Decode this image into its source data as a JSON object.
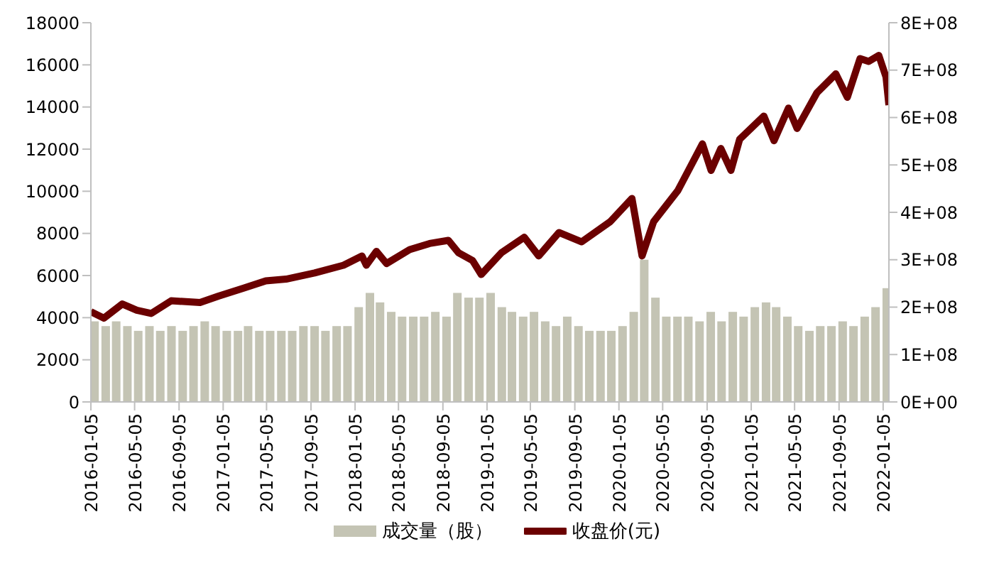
{
  "chart_data": {
    "type": "bar",
    "legend": "bottom",
    "grid": false,
    "marker": "none",
    "xlim": [
      "2016-01-05",
      "2022-01-21"
    ],
    "xticks": [
      "2016-01-05",
      "2016-05-05",
      "2016-09-05",
      "2017-01-05",
      "2017-05-05",
      "2017-09-05",
      "2018-01-05",
      "2018-05-05",
      "2018-09-05",
      "2019-01-05",
      "2019-05-05",
      "2019-09-05",
      "2020-01-05",
      "2020-05-05",
      "2020-09-05",
      "2021-01-05",
      "2021-05-05",
      "2021-09-05",
      "2022-01-05"
    ],
    "ylim": [
      0,
      18000
    ],
    "yticks": [
      0,
      2000,
      4000,
      6000,
      8000,
      10000,
      12000,
      14000,
      16000,
      18000
    ],
    "y2lim": [
      0,
      800000000
    ],
    "y2ticks": [
      {
        "value": 0,
        "label": "0E+00"
      },
      {
        "value": 100000000,
        "label": "1E+08"
      },
      {
        "value": 200000000,
        "label": "2E+08"
      },
      {
        "value": 300000000,
        "label": "3E+08"
      },
      {
        "value": 400000000,
        "label": "4E+08"
      },
      {
        "value": 500000000,
        "label": "5E+08"
      },
      {
        "value": 600000000,
        "label": "6E+08"
      },
      {
        "value": 700000000,
        "label": "7E+08"
      },
      {
        "value": 800000000,
        "label": "8E+08"
      }
    ],
    "series": [
      {
        "name": "成交量（股）",
        "axis": "y2",
        "color": "#c4c4b4",
        "x": [
          "2016-01-15",
          "2016-02-15",
          "2016-03-15",
          "2016-04-15",
          "2016-05-15",
          "2016-06-15",
          "2016-07-15",
          "2016-08-15",
          "2016-09-15",
          "2016-10-15",
          "2016-11-15",
          "2016-12-15",
          "2017-01-15",
          "2017-02-15",
          "2017-03-15",
          "2017-04-15",
          "2017-05-15",
          "2017-06-15",
          "2017-07-15",
          "2017-08-15",
          "2017-09-15",
          "2017-10-15",
          "2017-11-15",
          "2017-12-15",
          "2018-01-15",
          "2018-02-15",
          "2018-03-15",
          "2018-04-15",
          "2018-05-15",
          "2018-06-15",
          "2018-07-15",
          "2018-08-15",
          "2018-09-15",
          "2018-10-15",
          "2018-11-15",
          "2018-12-15",
          "2019-01-15",
          "2019-02-15",
          "2019-03-15",
          "2019-04-15",
          "2019-05-15",
          "2019-06-15",
          "2019-07-15",
          "2019-08-15",
          "2019-09-15",
          "2019-10-15",
          "2019-11-15",
          "2019-12-15",
          "2020-01-15",
          "2020-02-15",
          "2020-03-15",
          "2020-04-15",
          "2020-05-15",
          "2020-06-15",
          "2020-07-15",
          "2020-08-15",
          "2020-09-15",
          "2020-10-15",
          "2020-11-15",
          "2020-12-15",
          "2021-01-15",
          "2021-02-15",
          "2021-03-15",
          "2021-04-15",
          "2021-05-15",
          "2021-06-15",
          "2021-07-15",
          "2021-08-15",
          "2021-09-15",
          "2021-10-15",
          "2021-11-15",
          "2021-12-15",
          "2022-01-15"
        ],
        "values": [
          170000000,
          160000000,
          170000000,
          160000000,
          150000000,
          160000000,
          150000000,
          160000000,
          150000000,
          160000000,
          170000000,
          160000000,
          150000000,
          150000000,
          160000000,
          150000000,
          150000000,
          150000000,
          150000000,
          160000000,
          160000000,
          150000000,
          160000000,
          160000000,
          200000000,
          230000000,
          210000000,
          190000000,
          180000000,
          180000000,
          180000000,
          190000000,
          180000000,
          230000000,
          220000000,
          220000000,
          230000000,
          200000000,
          190000000,
          180000000,
          190000000,
          170000000,
          160000000,
          180000000,
          160000000,
          150000000,
          150000000,
          150000000,
          160000000,
          190000000,
          300000000,
          220000000,
          180000000,
          180000000,
          180000000,
          170000000,
          190000000,
          170000000,
          190000000,
          180000000,
          200000000,
          210000000,
          200000000,
          180000000,
          160000000,
          150000000,
          160000000,
          160000000,
          170000000,
          160000000,
          180000000,
          200000000,
          240000000
        ]
      },
      {
        "name": "收盘价(元)",
        "type": "line",
        "color": "#6b0000",
        "x": [
          "2016-01-05",
          "2016-02-10",
          "2016-04-01",
          "2016-05-11",
          "2016-06-20",
          "2016-08-14",
          "2016-11-02",
          "2016-12-23",
          "2017-03-01",
          "2017-05-03",
          "2017-06-28",
          "2017-09-15",
          "2017-12-04",
          "2018-01-24",
          "2018-02-05",
          "2018-03-05",
          "2018-04-02",
          "2018-06-05",
          "2018-07-30",
          "2018-09-20",
          "2018-10-18",
          "2018-11-26",
          "2018-12-20",
          "2019-02-14",
          "2019-04-18",
          "2019-05-28",
          "2019-07-23",
          "2019-09-24",
          "2019-12-12",
          "2020-02-10",
          "2020-03-09",
          "2020-04-10",
          "2020-06-16",
          "2020-08-23",
          "2020-09-16",
          "2020-10-13",
          "2020-11-10",
          "2020-12-04",
          "2021-02-09",
          "2021-03-09",
          "2021-04-18",
          "2021-05-12",
          "2021-07-06",
          "2021-08-27",
          "2021-09-28",
          "2021-11-02",
          "2021-11-26",
          "2021-12-24",
          "2022-01-13",
          "2022-01-21"
        ],
        "values": [
          4280,
          3980,
          4650,
          4350,
          4200,
          4800,
          4720,
          5020,
          5390,
          5750,
          5830,
          6120,
          6490,
          6930,
          6490,
          7150,
          6570,
          7230,
          7520,
          7670,
          7080,
          6710,
          6050,
          7080,
          7820,
          6930,
          8040,
          7600,
          8560,
          9660,
          6930,
          8560,
          10030,
          12250,
          10990,
          12030,
          10990,
          12470,
          13570,
          12400,
          13950,
          12980,
          14680,
          15570,
          14460,
          16300,
          16160,
          16450,
          15420,
          14090
        ]
      }
    ]
  }
}
